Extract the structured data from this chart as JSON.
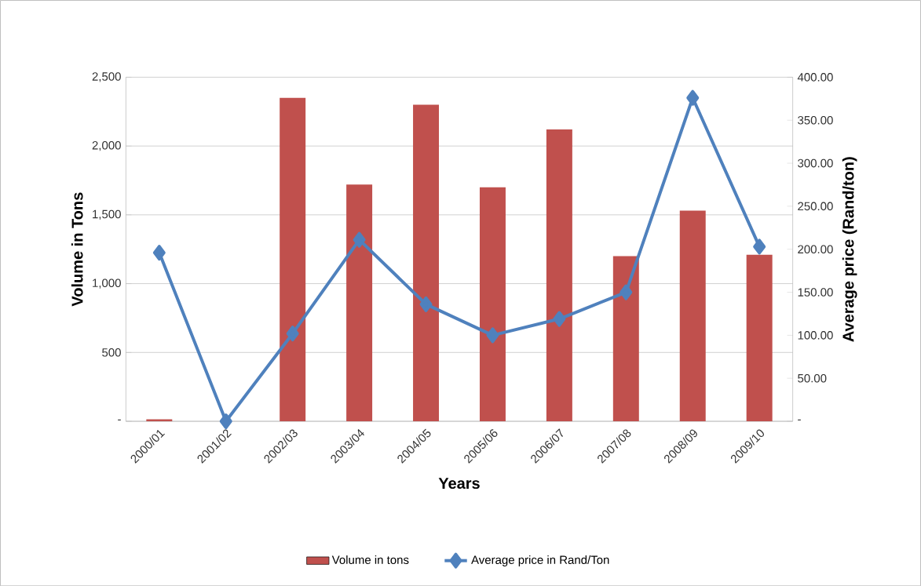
{
  "chart_data": {
    "type": "bar",
    "xlabel": "Years",
    "ylabel": "Volume in Tons",
    "y2label": "Average price (Rand/ton)",
    "categories": [
      "2000/01",
      "2001/02",
      "2002/03",
      "2003/04",
      "2004/05",
      "2005/06",
      "2006/07",
      "2007/08",
      "2008/09",
      "2009/10"
    ],
    "series": [
      {
        "name": "Volume in tons",
        "color": "#c0504d",
        "values": [
          15,
          0,
          2350,
          1720,
          2300,
          1700,
          2120,
          1200,
          1530,
          1210
        ]
      },
      {
        "name": "Average price in Rand/Ton",
        "type": "line",
        "axis": "y2",
        "color": "#4f81bd",
        "marker": "diamond",
        "line_style": "solid",
        "values": [
          196,
          0,
          102,
          211,
          136,
          100,
          119,
          150,
          376,
          203
        ]
      }
    ],
    "ylim": [
      0,
      2500
    ],
    "yticks": [
      {
        "value": 0,
        "label": "-"
      },
      500,
      {
        "value": 1000,
        "label": "1,000"
      },
      {
        "value": 1500,
        "label": "1,500"
      },
      {
        "value": 2000,
        "label": "2,000"
      },
      {
        "value": 2500,
        "label": "2,500"
      }
    ],
    "y2lim": [
      0,
      400
    ],
    "y2ticks": [
      {
        "value": 0,
        "label": "-"
      },
      {
        "value": 50,
        "label": "50.00"
      },
      {
        "value": 100,
        "label": "100.00"
      },
      {
        "value": 150,
        "label": "150.00"
      },
      {
        "value": 200,
        "label": "200.00"
      },
      {
        "value": 250,
        "label": "250.00"
      },
      {
        "value": 300,
        "label": "300.00"
      },
      {
        "value": 350,
        "label": "350.00"
      },
      {
        "value": 400,
        "label": "400.00"
      }
    ],
    "grid": "y",
    "legend": "bottom"
  }
}
